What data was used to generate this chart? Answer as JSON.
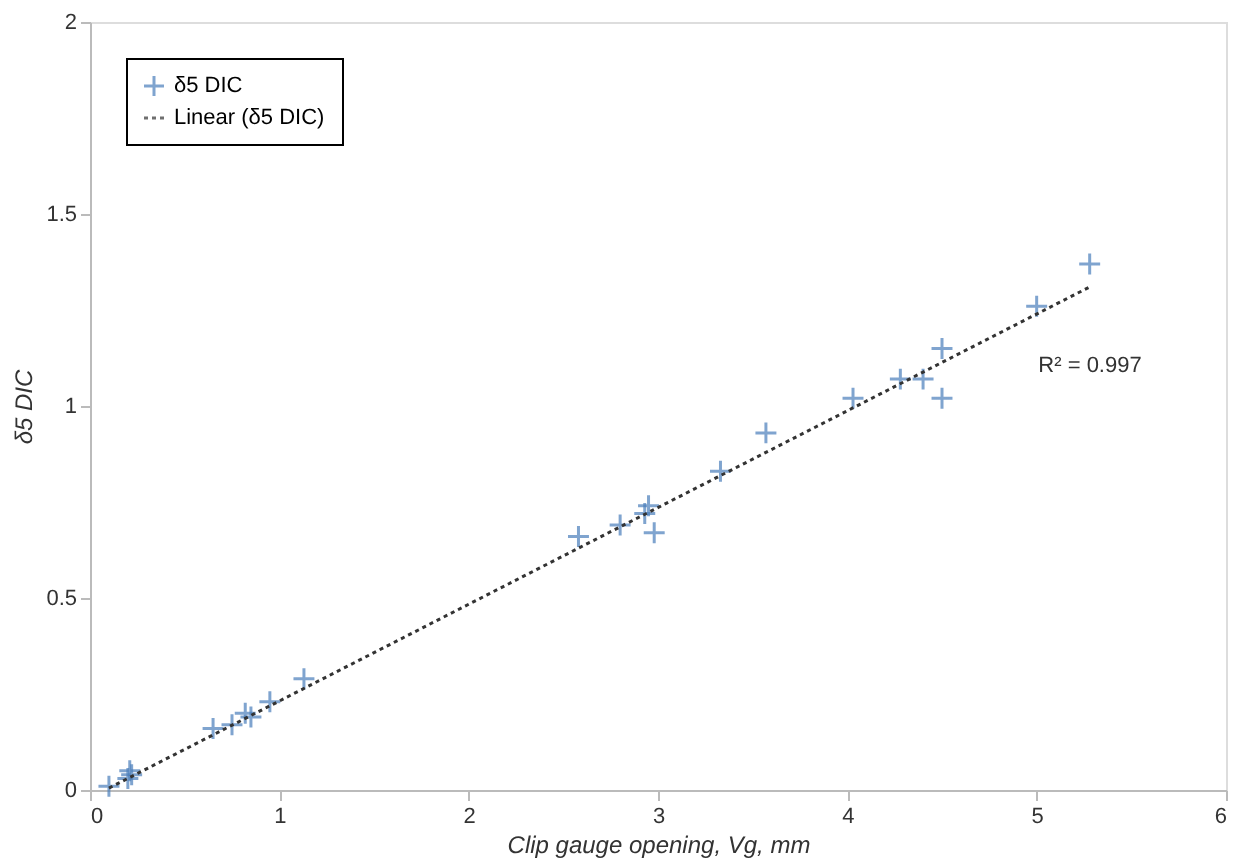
{
  "chart_data": {
    "type": "scatter",
    "xlabel": "Clip gauge opening, Vg, mm",
    "ylabel": "δ5 DIC",
    "xlim": [
      0,
      6
    ],
    "ylim": [
      0,
      2
    ],
    "xticks": [
      0,
      1,
      2,
      3,
      4,
      5,
      6
    ],
    "yticks": [
      0,
      0.5,
      1,
      1.5,
      2
    ],
    "grid": false,
    "legend": "top left",
    "marker": "cross",
    "series": [
      {
        "name": "δ5 DIC",
        "color": "#4a7ebb",
        "x": [
          0.1,
          0.2,
          0.21,
          0.22,
          0.65,
          0.75,
          0.82,
          0.85,
          0.95,
          1.13,
          2.58,
          2.8,
          2.93,
          2.95,
          2.98,
          3.33,
          3.57,
          4.03,
          4.28,
          4.4,
          4.5,
          4.5,
          5.0,
          5.28
        ],
        "values": [
          0.01,
          0.03,
          0.05,
          0.04,
          0.16,
          0.17,
          0.2,
          0.19,
          0.23,
          0.29,
          0.66,
          0.69,
          0.72,
          0.74,
          0.67,
          0.83,
          0.93,
          1.02,
          1.07,
          1.07,
          1.15,
          1.02,
          1.26,
          1.37
        ]
      },
      {
        "name": "Linear (δ5 DIC)",
        "type": "line",
        "marker": "none",
        "line_style": "dotted",
        "color": "#333333",
        "x": [
          0.1,
          5.28
        ],
        "values": [
          0.005,
          1.31
        ]
      }
    ],
    "annotations": [
      "R² = 0.997"
    ]
  }
}
